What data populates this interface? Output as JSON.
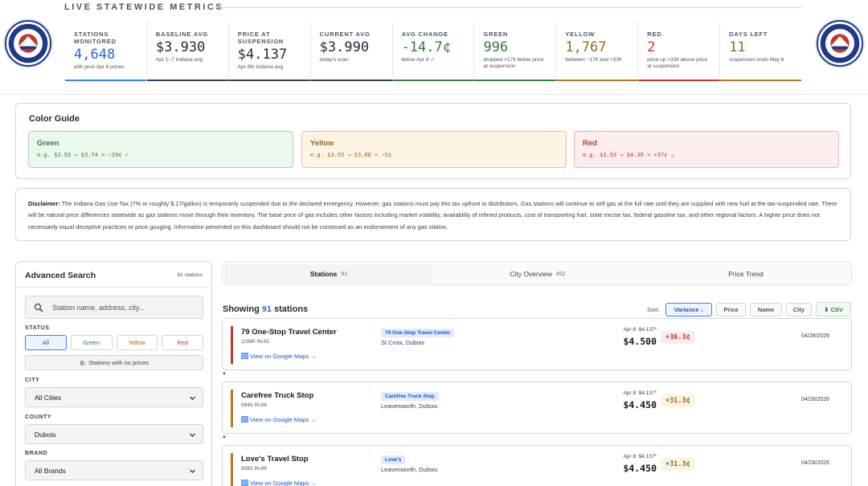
{
  "header": {
    "title": "LIVE STATEWIDE METRICS",
    "metrics": [
      {
        "label": "STATIONS MONITORED",
        "value": "4,648",
        "sub": "with post-Apr 8 prices",
        "color": "#2563eb",
        "accent": "#3b82f6"
      },
      {
        "label": "BASELINE AVG",
        "value": "$3.930",
        "sub": "Apr 1–7 Indiana avg",
        "color": "#1f2937",
        "accent": "#374151"
      },
      {
        "label": "PRICE AT SUSPENSION",
        "value": "$4.137",
        "sub": "Apr 8th Indiana avg",
        "color": "#1f2937",
        "accent": "#374151"
      },
      {
        "label": "CURRENT AVG",
        "value": "$3.990",
        "sub": "today's scan",
        "color": "#1f2937",
        "accent": "#374151"
      },
      {
        "label": "AVG CHANGE",
        "value": "-14.7¢",
        "sub": "below Apr 8 ✓",
        "color": "#2f7d3c",
        "accent": "#2f7d3c"
      },
      {
        "label": "GREEN",
        "value": "996",
        "sub": "dropped >17¢ below price at suspension",
        "color": "#2f7d3c",
        "accent": "#2f7d3c"
      },
      {
        "label": "YELLOW",
        "value": "1,767",
        "sub": "between −17¢ and +33¢",
        "color": "#9a6a12",
        "accent": "#b7791f"
      },
      {
        "label": "RED",
        "value": "2",
        "sub": "price up >33¢ above price at suspension",
        "color": "#c0392b",
        "accent": "#c0392b"
      },
      {
        "label": "DAYS LEFT",
        "value": "11",
        "sub": "suspension ends May 8",
        "color": "#9a6a12",
        "accent": "#b7791f"
      }
    ]
  },
  "guide": {
    "title": "Color Guide",
    "cards": [
      {
        "name": "Green",
        "example": "e.g. $3.93 → $3.74 = −19¢ ✓"
      },
      {
        "name": "Yellow",
        "example": "e.g. $3.93 → $3.88 = −5¢"
      },
      {
        "name": "Red",
        "example": "e.g. $3.93 → $4.30 = +37¢ ⚠"
      }
    ]
  },
  "disclaimer": {
    "label": "Disclaimer:",
    "text": "The Indiana Gas Use Tax (7% or roughly $.17/gallon) is temporarily suspended due to the declared emergency. However, gas stations must pay this tax upfront to distributors. Gas stations will continue to sell gas at the full rate until they are supplied with new fuel at the tax-suspended rate. There will be natural price differences statewide as gas stations move through their inventory. The base price of gas includes other factors including market volatility, availability of refined products, cost of transporting fuel, state excise tax, federal gasoline tax, and other regional factors. A higher price does not necessarily equal deceptive practices or price gouging. Information presented on this dashboard should not be construed as an endorsement of any gas station."
  },
  "sidebar": {
    "title": "Advanced Search",
    "count": "91 stations",
    "search_placeholder": "Station name, address, city...",
    "status_label": "STATUS",
    "status_buttons": [
      "All",
      "Green",
      "Yellow",
      "Red"
    ],
    "no_prices": "Stations with no prices",
    "city_label": "CITY",
    "city_value": "All Cities",
    "county_label": "COUNTY",
    "county_value": "Dubois",
    "brand_label": "BRAND",
    "brand_value": "All Brands"
  },
  "tabs": [
    {
      "label": "Stations",
      "count": "91"
    },
    {
      "label": "City Overview",
      "count": "452"
    },
    {
      "label": "Price Trend",
      "count": ""
    }
  ],
  "results": {
    "showing_prefix": "Showing",
    "showing_count": "91",
    "showing_suffix": "stations",
    "sort_label": "Sort:",
    "sort_options": [
      "Variance ↓",
      "Price",
      "Name",
      "City"
    ],
    "csv_label": "⬇ CSV",
    "maps_label": "View on Google Maps →",
    "stations": [
      {
        "name": "79 One-Stop Travel Center",
        "address": "11980 IN-62",
        "brand": "79 One-Stop Travel Center",
        "city": "St Croix, Dubois",
        "apr8": "Apr 8: $4.137*",
        "price": "$4.500",
        "variance": "+36.3¢",
        "status": "red",
        "date": "04/28/2026"
      },
      {
        "name": "Carefree Truck Stop",
        "address": "6945 IN-66",
        "brand": "Carefree Truck Stop",
        "city": "Leavenworth, Dubois",
        "apr8": "Apr 8: $4.137*",
        "price": "$4.450",
        "variance": "+31.3¢",
        "status": "yellow",
        "date": "04/28/2026"
      },
      {
        "name": "Love's Travel Stop",
        "address": "6582 IN-66",
        "brand": "Love's",
        "city": "Leavenworth, Dubois",
        "apr8": "Apr 8: $4.137*",
        "price": "$4.450",
        "variance": "+31.3¢",
        "status": "yellow",
        "date": "04/28/2026"
      }
    ]
  },
  "colors": {
    "red": "#c0392b",
    "yellow": "#b7791f",
    "green": "#2f7d3c",
    "accent": "#2563eb"
  }
}
